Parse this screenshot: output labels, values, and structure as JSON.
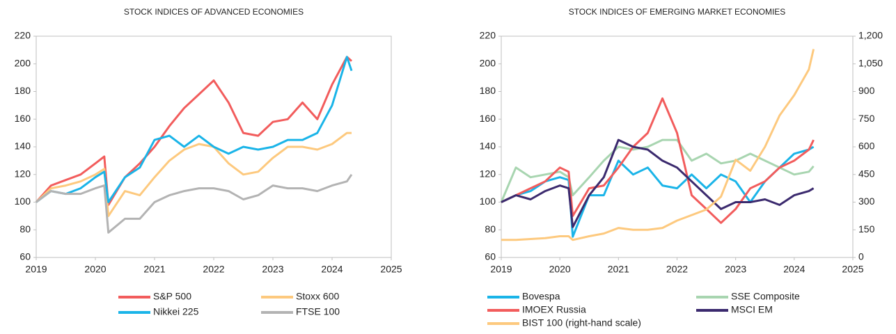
{
  "chart_data": [
    {
      "type": "line",
      "title": "STOCK INDICES OF ADVANCED ECONOMIES",
      "x": [
        2019,
        2019.25,
        2019.5,
        2019.75,
        2020,
        2020.15,
        2020.22,
        2020.5,
        2020.75,
        2021,
        2021.25,
        2021.5,
        2021.75,
        2022,
        2022.25,
        2022.5,
        2022.75,
        2023,
        2023.25,
        2023.5,
        2023.75,
        2024,
        2024.25,
        2024.33
      ],
      "xlim": [
        2019,
        2025
      ],
      "xticks": [
        2019,
        2020,
        2021,
        2022,
        2023,
        2024,
        2025
      ],
      "ylim": [
        60,
        220
      ],
      "yticks": [
        60,
        80,
        100,
        120,
        140,
        160,
        180,
        200,
        220
      ],
      "grid": false,
      "series": [
        {
          "name": "S&P 500",
          "color": "#f25c5c",
          "values": [
            100,
            112,
            116,
            120,
            128,
            133,
            98,
            118,
            128,
            140,
            155,
            168,
            178,
            188,
            172,
            150,
            148,
            158,
            160,
            172,
            160,
            185,
            205,
            202
          ]
        },
        {
          "name": "Stoxx 600",
          "color": "#fdc97e",
          "values": [
            100,
            110,
            112,
            115,
            120,
            124,
            90,
            108,
            105,
            118,
            130,
            138,
            142,
            140,
            128,
            120,
            122,
            132,
            140,
            140,
            138,
            142,
            150,
            150
          ]
        },
        {
          "name": "Nikkei 225",
          "color": "#1ab4e8",
          "values": [
            100,
            108,
            106,
            110,
            118,
            122,
            100,
            118,
            125,
            145,
            148,
            140,
            148,
            140,
            135,
            140,
            138,
            140,
            145,
            145,
            150,
            170,
            205,
            195
          ]
        },
        {
          "name": "FTSE 100",
          "color": "#b3b3b3",
          "values": [
            100,
            108,
            106,
            106,
            110,
            112,
            78,
            88,
            88,
            100,
            105,
            108,
            110,
            110,
            108,
            102,
            105,
            112,
            110,
            110,
            108,
            112,
            115,
            120
          ]
        }
      ]
    },
    {
      "type": "line",
      "title": "STOCK INDICES OF EMERGING MARKET ECONOMIES",
      "x": [
        2019,
        2019.25,
        2019.5,
        2019.75,
        2020,
        2020.15,
        2020.22,
        2020.5,
        2020.75,
        2021,
        2021.25,
        2021.5,
        2021.75,
        2022,
        2022.25,
        2022.5,
        2022.75,
        2023,
        2023.25,
        2023.5,
        2023.75,
        2024,
        2024.25,
        2024.33
      ],
      "xlim": [
        2019,
        2025
      ],
      "xticks": [
        2019,
        2020,
        2021,
        2022,
        2023,
        2024,
        2025
      ],
      "ylim": [
        60,
        220
      ],
      "yticks": [
        60,
        80,
        100,
        120,
        140,
        160,
        180,
        200,
        220
      ],
      "y2lim": [
        0,
        1200
      ],
      "y2ticks": [
        0,
        150,
        300,
        450,
        600,
        750,
        900,
        {
          "value": 1050,
          "label": "1,050"
        },
        {
          "value": 1200,
          "label": "1,200"
        }
      ],
      "grid": false,
      "series": [
        {
          "name": "Bovespa",
          "color": "#1ab4e8",
          "values": [
            100,
            105,
            108,
            115,
            118,
            116,
            75,
            105,
            105,
            130,
            120,
            125,
            112,
            110,
            120,
            110,
            120,
            115,
            100,
            115,
            125,
            135,
            138,
            140
          ]
        },
        {
          "name": "SSE Composite",
          "color": "#a8d5b0",
          "values": [
            100,
            125,
            118,
            120,
            122,
            118,
            105,
            118,
            130,
            140,
            138,
            140,
            145,
            145,
            130,
            135,
            128,
            130,
            135,
            130,
            125,
            120,
            122,
            126
          ]
        },
        {
          "name": "IMOEX Russia",
          "color": "#f25c5c",
          "values": [
            100,
            105,
            110,
            115,
            125,
            122,
            90,
            110,
            112,
            125,
            140,
            150,
            175,
            150,
            105,
            95,
            85,
            95,
            110,
            115,
            125,
            130,
            138,
            145
          ]
        },
        {
          "name": "MSCI EM",
          "color": "#3b2a6e",
          "values": [
            100,
            105,
            102,
            108,
            112,
            110,
            82,
            105,
            118,
            145,
            140,
            138,
            130,
            125,
            115,
            105,
            95,
            100,
            100,
            102,
            98,
            105,
            108,
            110
          ]
        },
        {
          "name": "BIST 100 (right-hand scale)",
          "color": "#fdc97e",
          "axis": "y2",
          "values": [
            95,
            95,
            100,
            105,
            115,
            115,
            95,
            115,
            130,
            160,
            150,
            150,
            160,
            200,
            230,
            260,
            330,
            530,
            470,
            600,
            770,
            880,
            1020,
            1130
          ]
        }
      ]
    }
  ]
}
